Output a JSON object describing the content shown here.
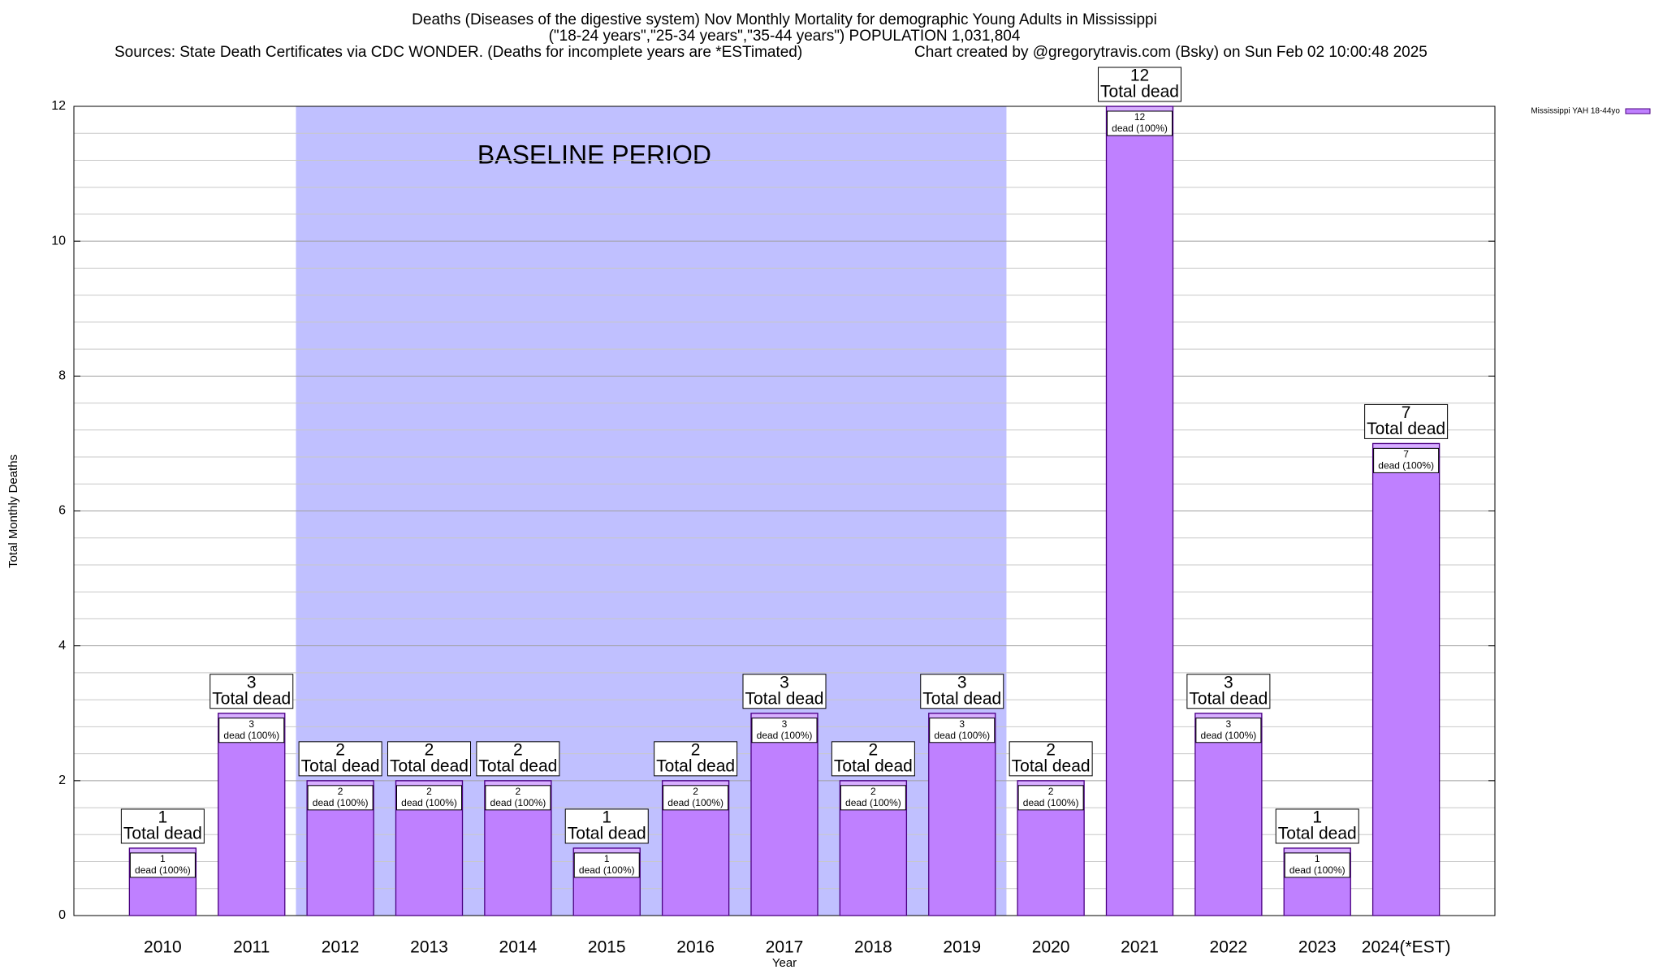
{
  "chart_data": {
    "type": "bar",
    "title": "Deaths (Diseases of the digestive system) Nov Monthly Mortality for demographic Young Adults in Mississippi",
    "subtitle": "(\"18-24 years\",\"25-34 years\",\"35-44 years\") POPULATION 1,031,804",
    "source": "Sources: State Death Certificates via CDC WONDER. (Deaths for incomplete years are *ESTimated)",
    "credit": "Chart created by @gregorytravis.com (Bsky) on Sun Feb 02 10:00:48 2025",
    "x_label": "Year",
    "y_label": "Total Monthly Deaths",
    "categories": [
      "2010",
      "2011",
      "2012",
      "2013",
      "2014",
      "2015",
      "2016",
      "2017",
      "2018",
      "2019",
      "2020",
      "2021",
      "2022",
      "2023",
      "2024(*EST)"
    ],
    "series": [
      {
        "name": "Mississippi YAH 18-44yo",
        "color": "#bf80ff",
        "values": [
          1,
          3,
          2,
          2,
          2,
          1,
          2,
          3,
          2,
          3,
          2,
          12,
          3,
          1,
          7
        ]
      }
    ],
    "total_label": "Total dead",
    "segment_label": "dead (100%)",
    "baseline": {
      "label": "BASELINE PERIOD",
      "from": "2012",
      "to": "2019",
      "color": "#c0c0ff"
    },
    "ylim": [
      0,
      12
    ],
    "yticks": [
      0,
      2,
      4,
      6,
      8,
      10,
      12
    ],
    "y_minor_divisions": 5,
    "grid": true,
    "legend": "top-right"
  }
}
